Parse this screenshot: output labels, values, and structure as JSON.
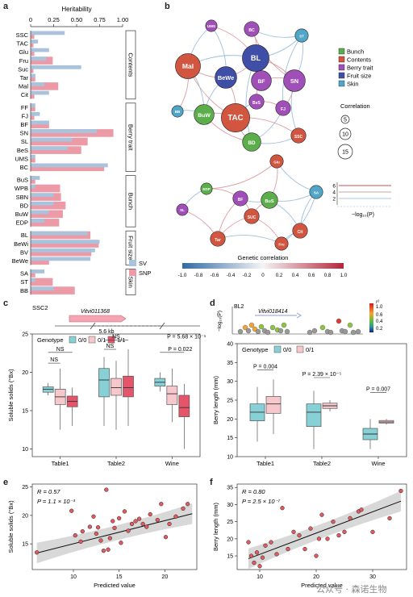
{
  "panel_labels": {
    "a": "a",
    "b": "b",
    "c": "c",
    "d": "d",
    "e": "e",
    "f": "f"
  },
  "watermark": "公众号 · 森诺生物",
  "colors": {
    "sv": "#a9c3dc",
    "snp": "#ec9aa6",
    "box_00": "#86d0d6",
    "box_01": "#f6c7cb",
    "box_11": "#e4546a",
    "scatter_fill": "#e05a60",
    "line": "#111111",
    "ci": "#c8c8c8"
  },
  "chart_data": [
    {
      "panel": "a",
      "type": "bar",
      "orientation": "horizontal",
      "xlabel": "Heritability",
      "xticks": [
        "0",
        "0.25",
        "0.50",
        "0.75",
        "1.00"
      ],
      "xlim": [
        0,
        1
      ],
      "legend": [
        {
          "name": "SV",
          "color": "#a9c3dc"
        },
        {
          "name": "SNP",
          "color": "#ec9aa6"
        }
      ],
      "legend_position": "bottom-right",
      "groups": [
        {
          "name": "Contents",
          "categories": [
            "SSC",
            "TAC",
            "Glu",
            "Fru",
            "Suc",
            "Tar",
            "Mal",
            "Cit"
          ],
          "sv": [
            0.37,
            0.08,
            0.2,
            0.17,
            0.55,
            0.05,
            0.15,
            0.2
          ],
          "snp": [
            0.04,
            0.03,
            0.04,
            0.24,
            0.03,
            0.05,
            0.3,
            0.04
          ]
        },
        {
          "name": "Berry trait",
          "categories": [
            "FF",
            "FJ",
            "BF",
            "SN",
            "SL",
            "BeS",
            "UMS",
            "BC"
          ],
          "sv": [
            0.05,
            0.1,
            0.2,
            0.72,
            0.45,
            0.4,
            0.05,
            0.84
          ],
          "snp": [
            0.05,
            0.04,
            0.2,
            0.9,
            0.62,
            0.55,
            0.05,
            0.8
          ]
        },
        {
          "name": "Bunch",
          "categories": [
            "BuS",
            "WPB",
            "SBN",
            "BD",
            "BuW",
            "EDP"
          ],
          "sv": [
            0.1,
            0.05,
            0.25,
            0.25,
            0.2,
            0.15
          ],
          "snp": [
            0.05,
            0.32,
            0.33,
            0.38,
            0.35,
            0.31
          ]
        },
        {
          "name": "Fruit size",
          "categories": [
            "BL",
            "BeWi",
            "BV",
            "BeWe"
          ],
          "sv": [
            0.62,
            0.75,
            0.7,
            0.65
          ],
          "snp": [
            0.65,
            0.74,
            0.66,
            0.2
          ]
        },
        {
          "name": "Skin",
          "categories": [
            "SA",
            "ST",
            "BB"
          ],
          "sv": [
            0.15,
            0.05,
            0.25
          ],
          "snp": [
            0.05,
            0.24,
            0.48
          ]
        }
      ]
    },
    {
      "panel": "b",
      "type": "network",
      "legend": [
        {
          "name": "Bunch",
          "color": "#5cae4b"
        },
        {
          "name": "Contents",
          "color": "#d2553f"
        },
        {
          "name": "Berry trait",
          "color": "#a04fb8"
        },
        {
          "name": "Fruit size",
          "color": "#3f4fa8"
        },
        {
          "name": "Skin",
          "color": "#4fa6c8"
        }
      ],
      "size_legend_title": "Correlation",
      "size_legend": [
        "5",
        "10",
        "15"
      ],
      "colorbar_title": "Genetic correlation",
      "colorbar_ticks": [
        "-1.0",
        "-0.8",
        "-0.6",
        "-0.4",
        "-0.2",
        "0",
        "0.2",
        "0.4",
        "0.6",
        "0.8",
        "1.0"
      ],
      "pvalue_label": "−log₁₀(P)",
      "pvalue_ticks": [
        "6",
        "4",
        "2"
      ],
      "nodes_upper": [
        {
          "id": "UMS",
          "group": "Berry trait",
          "size": 3
        },
        {
          "id": "BC",
          "group": "Berry trait",
          "size": 5
        },
        {
          "id": "ST",
          "group": "Skin",
          "size": 4
        },
        {
          "id": "Mal",
          "group": "Contents",
          "size": 11
        },
        {
          "id": "BL",
          "group": "Fruit size",
          "size": 12
        },
        {
          "id": "BeWe",
          "group": "Fruit size",
          "size": 9
        },
        {
          "id": "BF",
          "group": "Berry trait",
          "size": 8
        },
        {
          "id": "SN",
          "group": "Berry trait",
          "size": 9
        },
        {
          "id": "BeS",
          "group": "Berry trait",
          "size": 5
        },
        {
          "id": "FJ",
          "group": "Berry trait",
          "size": 5
        },
        {
          "id": "BB",
          "group": "Skin",
          "size": 3
        },
        {
          "id": "BuW",
          "group": "Bunch",
          "size": 8
        },
        {
          "id": "TAC",
          "group": "Contents",
          "size": 13
        },
        {
          "id": "BD",
          "group": "Bunch",
          "size": 7
        },
        {
          "id": "SSC",
          "group": "Contents",
          "size": 5
        }
      ],
      "nodes_lower": [
        {
          "id": "Glu",
          "group": "Contents",
          "size": 4
        },
        {
          "id": "EDP",
          "group": "Bunch",
          "size": 3
        },
        {
          "id": "SA",
          "group": "Skin",
          "size": 4
        },
        {
          "id": "BF",
          "group": "Berry trait",
          "size": 5
        },
        {
          "id": "BuS",
          "group": "Bunch",
          "size": 6
        },
        {
          "id": "SL",
          "group": "Berry trait",
          "size": 3
        },
        {
          "id": "SUC",
          "group": "Contents",
          "size": 5
        },
        {
          "id": "Cit",
          "group": "Contents",
          "size": 5
        },
        {
          "id": "Tar",
          "group": "Contents",
          "size": 5
        },
        {
          "id": "Fru",
          "group": "Contents",
          "size": 4
        }
      ]
    },
    {
      "panel": "c",
      "type": "box",
      "locus": "SSC2",
      "gene": "Vitvi011368",
      "sv_size": "5.6 kb",
      "ylabel": "Soluble solids (°Bx)",
      "ylim": [
        9,
        25
      ],
      "yticks": [
        "10",
        "15",
        "20",
        "25"
      ],
      "legend_title": "Genotype",
      "legend": [
        "0/0",
        "0/1",
        "1/1"
      ],
      "categories": [
        "Table1",
        "Table2",
        "Wine"
      ],
      "annotations": [
        "NS",
        "NS",
        "NS",
        "NS",
        "P = 5.68 × 10⁻⁵",
        "P = 0.022"
      ],
      "boxes": [
        {
          "category": "Table1",
          "genotype": "0/0",
          "min": 17.0,
          "q1": 17.4,
          "median": 17.8,
          "q3": 18.1,
          "max": 18.6
        },
        {
          "category": "Table1",
          "genotype": "0/1",
          "min": 12.5,
          "q1": 15.8,
          "median": 16.8,
          "q3": 17.8,
          "max": 20.5
        },
        {
          "category": "Table1",
          "genotype": "1/1",
          "min": 13.0,
          "q1": 15.5,
          "median": 16.2,
          "q3": 16.9,
          "max": 18.0
        },
        {
          "category": "Table2",
          "genotype": "0/0",
          "min": 13.0,
          "q1": 16.8,
          "median": 19.0,
          "q3": 20.5,
          "max": 22.0
        },
        {
          "category": "Table2",
          "genotype": "0/1",
          "min": 12.5,
          "q1": 17.0,
          "median": 18.0,
          "q3": 19.2,
          "max": 21.5
        },
        {
          "category": "Table2",
          "genotype": "1/1",
          "min": 13.0,
          "q1": 16.8,
          "median": 18.0,
          "q3": 19.5,
          "max": 23.0
        },
        {
          "category": "Wine",
          "genotype": "0/0",
          "min": 17.5,
          "q1": 18.2,
          "median": 18.7,
          "q3": 19.2,
          "max": 20.0
        },
        {
          "category": "Wine",
          "genotype": "0/1",
          "min": 13.5,
          "q1": 15.8,
          "median": 17.2,
          "q3": 18.2,
          "max": 20.5
        },
        {
          "category": "Wine",
          "genotype": "1/1",
          "min": 10.0,
          "q1": 14.2,
          "median": 15.4,
          "q3": 17.0,
          "max": 18.5
        }
      ]
    },
    {
      "panel": "d",
      "type": "box",
      "locus": "BL2",
      "gene": "Vitvi018414",
      "top_ylabel": "−log₁₀(P)",
      "r2_ticks": [
        "1.0",
        "0.6",
        "0.4",
        "0.2"
      ],
      "r2_title": "r²",
      "ylabel": "Berry length (mm)",
      "ylim": [
        10,
        40
      ],
      "yticks": [
        "10",
        "15",
        "20",
        "25",
        "30",
        "35",
        "40"
      ],
      "legend_title": "Genotype",
      "legend": [
        "0/0",
        "0/1"
      ],
      "categories": [
        "Table1",
        "Table2",
        "Wine"
      ],
      "annotations": [
        "P = 0.004",
        "P = 2.39 × 10⁻⁵",
        "P = 0.007"
      ],
      "boxes": [
        {
          "category": "Table1",
          "genotype": "0/0",
          "min": 14.0,
          "q1": 19.5,
          "median": 21.8,
          "q3": 24.0,
          "max": 28.5
        },
        {
          "category": "Table1",
          "genotype": "0/1",
          "min": 16.0,
          "q1": 21.5,
          "median": 24.0,
          "q3": 26.0,
          "max": 30.5
        },
        {
          "category": "Table2",
          "genotype": "0/0",
          "min": 12.0,
          "q1": 18.0,
          "median": 21.8,
          "q3": 24.0,
          "max": 27.5
        },
        {
          "category": "Table2",
          "genotype": "0/1",
          "min": 22.0,
          "q1": 22.8,
          "median": 23.5,
          "q3": 24.2,
          "max": 25.0
        },
        {
          "category": "Wine",
          "genotype": "0/0",
          "min": 12.0,
          "q1": 14.5,
          "median": 16.0,
          "q3": 17.5,
          "max": 20.0
        },
        {
          "category": "Wine",
          "genotype": "0/1",
          "min": 18.5,
          "q1": 18.9,
          "median": 19.2,
          "q3": 19.6,
          "max": 20.0
        }
      ]
    },
    {
      "panel": "e",
      "type": "scatter",
      "ylabel": "Soluble solids (°Bx)",
      "xlabel": "Predicted value",
      "xticks": [
        "10",
        "15",
        "20"
      ],
      "yticks": [
        "15",
        "20",
        "25"
      ],
      "xlim": [
        5.5,
        23.5
      ],
      "ylim": [
        10.5,
        25.5
      ],
      "stat_r": "R = 0.57",
      "stat_p": "P = 1.1 × 10⁻³",
      "fit": {
        "x0": 6,
        "y0": 13.4,
        "x1": 23,
        "y1": 20.3
      },
      "x": [
        6.0,
        9.8,
        10.2,
        10.8,
        11.0,
        11.8,
        12.2,
        12.5,
        12.7,
        13.0,
        13.3,
        13.6,
        13.8,
        14.0,
        14.3,
        14.5,
        15.0,
        15.2,
        15.6,
        16.0,
        16.4,
        16.8,
        17.2,
        17.6,
        18.0,
        18.4,
        19.2,
        19.6,
        20.1,
        20.5,
        21.2,
        22.0,
        22.5
      ],
      "y": [
        13.5,
        20.8,
        16.5,
        15.4,
        17.2,
        18.0,
        19.8,
        16.8,
        17.9,
        15.6,
        13.8,
        24.5,
        14.0,
        16.0,
        19.0,
        17.8,
        19.5,
        15.2,
        20.7,
        17.3,
        18.5,
        19.0,
        19.4,
        18.5,
        18.0,
        20.2,
        19.2,
        22.0,
        16.2,
        18.5,
        19.8,
        21.2,
        22.0
      ]
    },
    {
      "panel": "f",
      "type": "scatter",
      "ylabel": "Berry length (mm)",
      "xlabel": "Predicted value",
      "xticks": [
        "10",
        "20",
        "30"
      ],
      "yticks": [
        "15",
        "20",
        "25",
        "30",
        "35"
      ],
      "xlim": [
        6,
        36
      ],
      "ylim": [
        11,
        36
      ],
      "stat_r": "R = 0.80",
      "stat_p": "P = 2.5 × 10⁻⁷",
      "fit": {
        "x0": 8,
        "y0": 14.2,
        "x1": 35,
        "y1": 31.0
      },
      "x": [
        8.0,
        8.5,
        9.0,
        9.5,
        10.0,
        10.5,
        11.0,
        12.0,
        13.0,
        14.0,
        15.0,
        16.0,
        17.0,
        18.0,
        19.0,
        20.0,
        20.5,
        21.0,
        22.0,
        23.0,
        24.0,
        25.0,
        26.0,
        27.5,
        28.0,
        30.0,
        33.0,
        35.0
      ],
      "y": [
        19.0,
        15.0,
        13.0,
        16.0,
        12.0,
        14.5,
        18.0,
        19.0,
        15.5,
        29.0,
        17.0,
        22.0,
        21.0,
        17.0,
        23.0,
        15.0,
        20.0,
        27.0,
        20.0,
        25.0,
        21.0,
        22.0,
        26.0,
        28.0,
        28.5,
        22.0,
        26.0,
        34.0
      ]
    }
  ]
}
